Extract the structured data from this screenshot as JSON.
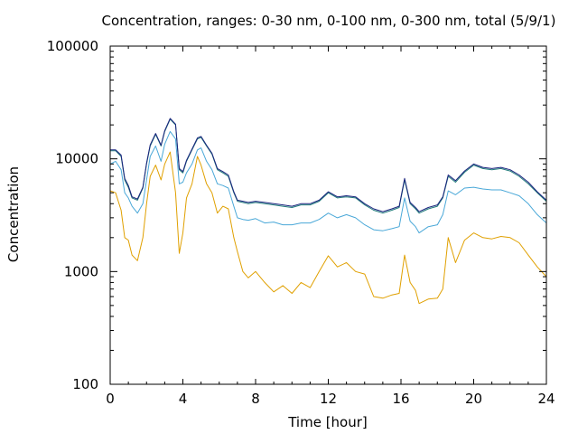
{
  "chart_data": {
    "type": "line",
    "title": "Concentration, ranges: 0-30 nm, 0-100 nm, 0-300 nm, total (5/9/1)",
    "xlabel": "Time [hour]",
    "ylabel": "Concentration",
    "xlim": [
      0,
      24
    ],
    "ylim": [
      100,
      100000
    ],
    "yscale": "log",
    "grid": false,
    "x_ticks": [
      0,
      4,
      8,
      12,
      16,
      20,
      24
    ],
    "x_tick_labels": [
      "0",
      "4",
      "8",
      "12",
      "16",
      "20",
      "24"
    ],
    "y_ticks": [
      100,
      1000,
      10000,
      100000
    ],
    "y_tick_labels": [
      "100",
      "1000",
      "10000",
      "100000"
    ],
    "series": [
      {
        "color": "#e0a000",
        "x": [
          0,
          0.3,
          0.6,
          0.8,
          1.0,
          1.2,
          1.5,
          1.8,
          2.0,
          2.2,
          2.5,
          2.8,
          3.0,
          3.3,
          3.6,
          3.8,
          4.0,
          4.2,
          4.5,
          4.8,
          5.0,
          5.3,
          5.6,
          5.9,
          6.2,
          6.5,
          6.8,
          7.0,
          7.3,
          7.6,
          8.0,
          8.5,
          9.0,
          9.5,
          10.0,
          10.5,
          11.0,
          11.5,
          12.0,
          12.5,
          13.0,
          13.5,
          14.0,
          14.5,
          15.0,
          15.5,
          15.9,
          16.2,
          16.5,
          16.8,
          17.0,
          17.5,
          18.0,
          18.3,
          18.6,
          19.0,
          19.5,
          20.0,
          20.5,
          21.0,
          21.5,
          22.0,
          22.5,
          23.0,
          23.5,
          24.0
        ],
        "values": [
          5200,
          5000,
          3500,
          2000,
          1900,
          1400,
          1250,
          2000,
          4000,
          7000,
          8800,
          6500,
          9000,
          11500,
          5000,
          1450,
          2200,
          4500,
          6000,
          10500,
          8800,
          6000,
          5000,
          3300,
          3800,
          3600,
          2000,
          1500,
          1000,
          880,
          1000,
          800,
          660,
          750,
          640,
          800,
          720,
          1000,
          1380,
          1100,
          1200,
          1000,
          950,
          600,
          580,
          620,
          640,
          1400,
          800,
          680,
          520,
          570,
          580,
          700,
          2000,
          1200,
          1900,
          2200,
          2000,
          1950,
          2050,
          2000,
          1800,
          1400,
          1100,
          900
        ]
      },
      {
        "color": "#4aa8d8",
        "x": [
          0,
          0.3,
          0.6,
          0.8,
          1.0,
          1.2,
          1.5,
          1.8,
          2.0,
          2.2,
          2.5,
          2.8,
          3.0,
          3.3,
          3.6,
          3.8,
          4.0,
          4.2,
          4.5,
          4.8,
          5.0,
          5.3,
          5.6,
          5.9,
          6.2,
          6.5,
          6.8,
          7.0,
          7.3,
          7.6,
          8.0,
          8.5,
          9.0,
          9.5,
          10.0,
          10.5,
          11.0,
          11.5,
          12.0,
          12.5,
          13.0,
          13.5,
          14.0,
          14.5,
          15.0,
          15.5,
          15.9,
          16.2,
          16.5,
          16.8,
          17.0,
          17.5,
          18.0,
          18.3,
          18.6,
          19.0,
          19.5,
          20.0,
          20.5,
          21.0,
          21.5,
          22.0,
          22.5,
          23.0,
          23.5,
          24.0
        ],
        "values": [
          9000,
          9500,
          8000,
          5000,
          4500,
          3800,
          3300,
          4000,
          6500,
          10500,
          13000,
          9500,
          13500,
          17500,
          15000,
          6000,
          6200,
          7500,
          9000,
          12000,
          12500,
          9500,
          8000,
          6000,
          5800,
          5500,
          3800,
          3000,
          2900,
          2850,
          2950,
          2700,
          2750,
          2600,
          2600,
          2700,
          2700,
          2900,
          3300,
          3000,
          3200,
          3000,
          2600,
          2350,
          2300,
          2400,
          2500,
          4500,
          2800,
          2500,
          2200,
          2500,
          2600,
          3200,
          5200,
          4800,
          5500,
          5600,
          5400,
          5300,
          5300,
          5000,
          4700,
          4000,
          3200,
          2700
        ]
      },
      {
        "color": "#1f7a7a",
        "x": [
          0,
          0.3,
          0.6,
          0.8,
          1.0,
          1.2,
          1.5,
          1.8,
          2.0,
          2.2,
          2.5,
          2.8,
          3.0,
          3.3,
          3.6,
          3.8,
          4.0,
          4.2,
          4.5,
          4.8,
          5.0,
          5.3,
          5.6,
          5.9,
          6.2,
          6.5,
          6.8,
          7.0,
          7.3,
          7.6,
          8.0,
          8.5,
          9.0,
          9.5,
          10.0,
          10.5,
          11.0,
          11.5,
          12.0,
          12.5,
          13.0,
          13.5,
          14.0,
          14.5,
          15.0,
          15.5,
          15.9,
          16.2,
          16.5,
          16.8,
          17.0,
          17.5,
          18.0,
          18.3,
          18.6,
          19.0,
          19.5,
          20.0,
          20.5,
          21.0,
          21.5,
          22.0,
          22.5,
          23.0,
          23.5,
          24.0
        ],
        "values": [
          11800,
          11800,
          10500,
          6500,
          5600,
          4500,
          4300,
          5500,
          9000,
          13000,
          16500,
          13000,
          17500,
          22500,
          20000,
          8000,
          7500,
          9500,
          12000,
          15000,
          15500,
          13000,
          11000,
          8000,
          7500,
          7000,
          5000,
          4200,
          4100,
          4000,
          4100,
          4000,
          3900,
          3800,
          3700,
          3900,
          3900,
          4200,
          5000,
          4500,
          4600,
          4500,
          3900,
          3500,
          3300,
          3500,
          3700,
          6500,
          4000,
          3600,
          3300,
          3600,
          3800,
          4500,
          7000,
          6200,
          7600,
          8800,
          8200,
          8000,
          8200,
          7800,
          7000,
          6000,
          5000,
          4200
        ]
      },
      {
        "color": "#1a237e",
        "x": [
          0,
          0.3,
          0.6,
          0.8,
          1.0,
          1.2,
          1.5,
          1.8,
          2.0,
          2.2,
          2.5,
          2.8,
          3.0,
          3.3,
          3.6,
          3.8,
          4.0,
          4.2,
          4.5,
          4.8,
          5.0,
          5.3,
          5.6,
          5.9,
          6.2,
          6.5,
          6.8,
          7.0,
          7.3,
          7.6,
          8.0,
          8.5,
          9.0,
          9.5,
          10.0,
          10.5,
          11.0,
          11.5,
          12.0,
          12.5,
          13.0,
          13.5,
          14.0,
          14.5,
          15.0,
          15.5,
          15.9,
          16.2,
          16.5,
          16.8,
          17.0,
          17.5,
          18.0,
          18.3,
          18.6,
          19.0,
          19.5,
          20.0,
          20.5,
          21.0,
          21.5,
          22.0,
          22.5,
          23.0,
          23.5,
          24.0
        ],
        "values": [
          12000,
          12000,
          10800,
          6700,
          5800,
          4600,
          4400,
          5600,
          9200,
          13300,
          16800,
          13200,
          17800,
          22800,
          20300,
          8200,
          7700,
          9700,
          12200,
          15300,
          15800,
          13200,
          11200,
          8200,
          7700,
          7200,
          5100,
          4300,
          4200,
          4100,
          4200,
          4100,
          4000,
          3900,
          3800,
          4000,
          4000,
          4300,
          5100,
          4600,
          4700,
          4600,
          4000,
          3600,
          3400,
          3600,
          3800,
          6700,
          4100,
          3700,
          3400,
          3700,
          3900,
          4600,
          7200,
          6400,
          7800,
          9000,
          8400,
          8200,
          8400,
          8000,
          7200,
          6200,
          5100,
          4300
        ]
      }
    ]
  }
}
